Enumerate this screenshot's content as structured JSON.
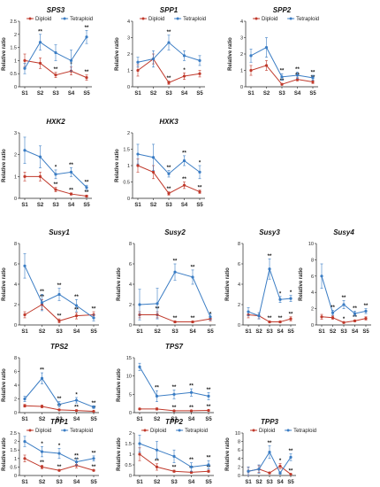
{
  "colors": {
    "diploid": "#c0392b",
    "tetraploid": "#3b7dc4"
  },
  "chart_data": [
    {
      "type": "line",
      "title": "SPS3",
      "ylabel": "Relative ratio",
      "categories": [
        "S1",
        "S2",
        "S3",
        "S4",
        "S5"
      ],
      "ylim": [
        0,
        2.5
      ],
      "yticks": [
        0,
        0.5,
        1,
        1.5,
        2,
        2.5
      ],
      "legend": {
        "position": "top",
        "entries": [
          "Diploid",
          "Tetraploid"
        ]
      },
      "series": [
        {
          "name": "Diploid",
          "values": [
            1.0,
            0.9,
            0.45,
            0.6,
            0.35
          ],
          "errors": [
            0.25,
            0.2,
            0.1,
            0.15,
            0.1
          ],
          "sig": [
            "",
            "",
            "**",
            "*",
            "**"
          ]
        },
        {
          "name": "Tetraploid",
          "values": [
            0.7,
            1.7,
            1.3,
            1.0,
            1.9
          ],
          "errors": [
            0.2,
            0.3,
            0.3,
            0.4,
            0.25
          ],
          "sig": [
            "",
            "**",
            "",
            "",
            "**"
          ]
        }
      ]
    },
    {
      "type": "line",
      "title": "SPP1",
      "ylabel": "Relative ratio",
      "categories": [
        "S1",
        "S2",
        "S3",
        "S4",
        "S5"
      ],
      "ylim": [
        0,
        4
      ],
      "yticks": [
        0,
        1,
        2,
        3,
        4
      ],
      "legend": {
        "position": "top",
        "entries": [
          "Diploid",
          "Tetraploid"
        ]
      },
      "series": [
        {
          "name": "Diploid",
          "values": [
            1.0,
            1.7,
            0.25,
            0.65,
            0.8
          ],
          "errors": [
            0.35,
            0.3,
            0.1,
            0.2,
            0.2
          ],
          "sig": [
            "",
            "",
            "**",
            "*",
            ""
          ]
        },
        {
          "name": "Tetraploid",
          "values": [
            1.5,
            1.7,
            2.7,
            1.9,
            1.6
          ],
          "errors": [
            0.3,
            0.5,
            0.45,
            0.3,
            0.3
          ],
          "sig": [
            "",
            "",
            "**",
            "",
            ""
          ]
        }
      ]
    },
    {
      "type": "line",
      "title": "SPP2",
      "ylabel": "Relative ratio",
      "categories": [
        "S1",
        "S2",
        "S3",
        "S4",
        "S5"
      ],
      "ylim": [
        0,
        4
      ],
      "yticks": [
        0,
        1,
        2,
        3,
        4
      ],
      "legend": {
        "position": "top",
        "entries": [
          "Diploid",
          "Tetraploid"
        ]
      },
      "series": [
        {
          "name": "Diploid",
          "values": [
            1.0,
            1.3,
            0.15,
            0.45,
            0.3
          ],
          "errors": [
            0.3,
            0.3,
            0.05,
            0.1,
            0.1
          ],
          "sig": [
            "",
            "",
            "**",
            "**",
            "**"
          ]
        },
        {
          "name": "Tetraploid",
          "values": [
            1.9,
            2.4,
            0.6,
            0.7,
            0.55
          ],
          "errors": [
            0.4,
            0.6,
            0.2,
            0.2,
            0.15
          ],
          "sig": [
            "",
            "",
            "**",
            "**",
            "**"
          ]
        }
      ]
    },
    {
      "type": "line",
      "title": "HXK2",
      "ylabel": "Relative ratio",
      "categories": [
        "S1",
        "S2",
        "S3",
        "S4",
        "S5"
      ],
      "ylim": [
        0,
        3
      ],
      "yticks": [
        0,
        1,
        2,
        3
      ],
      "series": [
        {
          "name": "Diploid",
          "values": [
            1.0,
            1.0,
            0.4,
            0.2,
            0.1
          ],
          "errors": [
            0.2,
            0.2,
            0.1,
            0.05,
            0.05
          ],
          "sig": [
            "",
            "",
            "**",
            "**",
            "**"
          ]
        },
        {
          "name": "Tetraploid",
          "values": [
            2.2,
            1.9,
            1.1,
            1.2,
            0.5
          ],
          "errors": [
            0.6,
            0.5,
            0.2,
            0.2,
            0.1
          ],
          "sig": [
            "",
            "",
            "*",
            "**",
            "**"
          ]
        }
      ]
    },
    {
      "type": "line",
      "title": "HXK3",
      "ylabel": "Relative ratio",
      "categories": [
        "S1",
        "S2",
        "S3",
        "S4",
        "S5"
      ],
      "ylim": [
        0,
        2
      ],
      "yticks": [
        0,
        0.5,
        1,
        1.5,
        2
      ],
      "series": [
        {
          "name": "Diploid",
          "values": [
            1.0,
            0.8,
            0.15,
            0.4,
            0.2
          ],
          "errors": [
            0.2,
            0.2,
            0.05,
            0.1,
            0.05
          ],
          "sig": [
            "",
            "",
            "**",
            "**",
            "**"
          ]
        },
        {
          "name": "Tetraploid",
          "values": [
            1.35,
            1.25,
            0.75,
            1.15,
            0.8
          ],
          "errors": [
            0.3,
            0.4,
            0.1,
            0.15,
            0.2
          ],
          "sig": [
            "",
            "",
            "**",
            "**",
            "*"
          ]
        }
      ]
    },
    {
      "type": "line",
      "title": "Susy1",
      "ylabel": "Relative ratio",
      "categories": [
        "S1",
        "S2",
        "S3",
        "S4",
        "S5"
      ],
      "ylim": [
        0,
        8
      ],
      "yticks": [
        0,
        2,
        4,
        6,
        8
      ],
      "series": [
        {
          "name": "Diploid",
          "values": [
            1.0,
            2.0,
            0.4,
            0.9,
            1.0
          ],
          "errors": [
            0.3,
            0.5,
            0.2,
            0.3,
            0.3
          ],
          "sig": [
            "",
            "**",
            "**",
            "**",
            "**"
          ]
        },
        {
          "name": "Tetraploid",
          "values": [
            5.8,
            2.2,
            3.0,
            1.9,
            0.7
          ],
          "errors": [
            1.2,
            0.8,
            0.6,
            0.6,
            0.3
          ],
          "sig": [
            "",
            "**",
            "**",
            "**",
            ""
          ]
        }
      ]
    },
    {
      "type": "line",
      "title": "Susy2",
      "ylabel": "Relative ratio",
      "categories": [
        "S1",
        "S2",
        "S3",
        "S4",
        "S5"
      ],
      "ylim": [
        0,
        8
      ],
      "yticks": [
        0,
        2,
        4,
        6,
        8
      ],
      "series": [
        {
          "name": "Diploid",
          "values": [
            1.0,
            1.0,
            0.3,
            0.3,
            0.6
          ],
          "errors": [
            0.3,
            0.3,
            0.1,
            0.1,
            0.2
          ],
          "sig": [
            "",
            "**",
            "**",
            "**",
            "*"
          ]
        },
        {
          "name": "Tetraploid",
          "values": [
            2.0,
            2.1,
            5.2,
            4.7,
            0.8
          ],
          "errors": [
            1.5,
            1.5,
            0.8,
            0.7,
            0.3
          ],
          "sig": [
            "",
            "",
            "**",
            "**",
            ""
          ]
        }
      ]
    },
    {
      "type": "line",
      "title": "Susy3",
      "ylabel": "Relative ratio",
      "categories": [
        "S1",
        "S2",
        "S3",
        "S4",
        "S5"
      ],
      "ylim": [
        0,
        8
      ],
      "yticks": [
        0,
        2,
        4,
        6,
        8
      ],
      "series": [
        {
          "name": "Diploid",
          "values": [
            1.0,
            0.9,
            0.3,
            0.3,
            0.6
          ],
          "errors": [
            0.3,
            0.3,
            0.1,
            0.1,
            0.2
          ],
          "sig": [
            "",
            "",
            "**",
            "**",
            "**"
          ]
        },
        {
          "name": "Tetraploid",
          "values": [
            1.3,
            0.9,
            5.5,
            2.5,
            2.6
          ],
          "errors": [
            0.4,
            0.3,
            1.0,
            0.3,
            0.3
          ],
          "sig": [
            "",
            "",
            "**",
            "*",
            "*"
          ]
        }
      ]
    },
    {
      "type": "line",
      "title": "Susy4",
      "ylabel": "Relative ratio",
      "categories": [
        "S1",
        "S2",
        "S3",
        "S4",
        "S5"
      ],
      "ylim": [
        0,
        10
      ],
      "yticks": [
        0,
        2,
        4,
        6,
        8,
        10
      ],
      "series": [
        {
          "name": "Diploid",
          "values": [
            1.0,
            0.9,
            0.3,
            0.5,
            0.8
          ],
          "errors": [
            0.3,
            0.2,
            0.1,
            0.1,
            0.2
          ],
          "sig": [
            "",
            "",
            "*",
            "**",
            ""
          ]
        },
        {
          "name": "Tetraploid",
          "values": [
            6.0,
            1.5,
            2.5,
            1.4,
            1.7
          ],
          "errors": [
            1.5,
            0.3,
            0.5,
            0.3,
            0.3
          ],
          "sig": [
            "",
            "**",
            "**",
            "**",
            "**"
          ]
        }
      ]
    },
    {
      "type": "line",
      "title": "TPS2",
      "ylabel": "Relative ratio",
      "categories": [
        "S1",
        "S2",
        "S3",
        "S4",
        "S5"
      ],
      "ylim": [
        0,
        8
      ],
      "yticks": [
        0,
        2,
        4,
        6,
        8
      ],
      "series": [
        {
          "name": "Diploid",
          "values": [
            1.0,
            0.9,
            0.4,
            0.3,
            0.2
          ],
          "errors": [
            0.2,
            0.2,
            0.1,
            0.1,
            0.05
          ],
          "sig": [
            "",
            "",
            "**",
            "**",
            "**"
          ]
        },
        {
          "name": "Tetraploid",
          "values": [
            2.0,
            5.0,
            1.2,
            1.8,
            0.8
          ],
          "errors": [
            0.4,
            0.8,
            0.4,
            0.4,
            0.2
          ],
          "sig": [
            "",
            "**",
            "**",
            "*",
            "**"
          ]
        }
      ]
    },
    {
      "type": "line",
      "title": "TPS7",
      "ylabel": "Relative ratio",
      "categories": [
        "S1",
        "S2",
        "S3",
        "S4",
        "S5"
      ],
      "ylim": [
        0,
        15
      ],
      "yticks": [
        0,
        5,
        10,
        15
      ],
      "series": [
        {
          "name": "Diploid",
          "values": [
            1.0,
            1.0,
            0.5,
            0.5,
            0.6
          ],
          "errors": [
            0.2,
            0.3,
            0.1,
            0.1,
            0.2
          ],
          "sig": [
            "",
            "",
            "**",
            "**",
            "**"
          ]
        },
        {
          "name": "Tetraploid",
          "values": [
            12.5,
            4.5,
            5.0,
            5.5,
            4.5
          ],
          "errors": [
            1.0,
            1.5,
            1.2,
            1.0,
            1.0
          ],
          "sig": [
            "",
            "**",
            "**",
            "**",
            "**"
          ]
        }
      ]
    },
    {
      "type": "line",
      "title": "TPP1",
      "ylabel": "Relative ratio",
      "categories": [
        "S1",
        "S2",
        "S3",
        "S4",
        "S5"
      ],
      "ylim": [
        0,
        2.5
      ],
      "yticks": [
        0,
        0.5,
        1,
        1.5,
        2,
        2.5
      ],
      "legend": {
        "position": "top",
        "entries": [
          "Diploid",
          "Tetraploid"
        ]
      },
      "series": [
        {
          "name": "Diploid",
          "values": [
            1.0,
            0.5,
            0.3,
            0.6,
            0.3
          ],
          "errors": [
            0.2,
            0.1,
            0.05,
            0.15,
            0.05
          ],
          "sig": [
            "",
            "**",
            "**",
            "**",
            "**"
          ]
        },
        {
          "name": "Tetraploid",
          "values": [
            2.0,
            1.4,
            1.3,
            0.8,
            1.0
          ],
          "errors": [
            0.3,
            0.3,
            0.3,
            0.2,
            0.15
          ],
          "sig": [
            "",
            "*",
            "*",
            "**",
            "**"
          ]
        }
      ]
    },
    {
      "type": "line",
      "title": "TPP2",
      "ylabel": "Relative ratio",
      "categories": [
        "S1",
        "S2",
        "S3",
        "S4",
        "S5"
      ],
      "ylim": [
        0,
        2
      ],
      "yticks": [
        0,
        0.5,
        1,
        1.5,
        2
      ],
      "legend": {
        "position": "top",
        "entries": [
          "Diploid",
          "Tetraploid"
        ]
      },
      "series": [
        {
          "name": "Diploid",
          "values": [
            1.0,
            0.4,
            0.2,
            0.15,
            0.2
          ],
          "errors": [
            0.3,
            0.15,
            0.05,
            0.05,
            0.05
          ],
          "sig": [
            "",
            "**",
            "**",
            "**",
            "**"
          ]
        },
        {
          "name": "Tetraploid",
          "values": [
            1.5,
            1.2,
            0.9,
            0.4,
            0.5
          ],
          "errors": [
            0.4,
            0.4,
            0.3,
            0.2,
            0.2
          ],
          "sig": [
            "",
            "",
            "",
            "**",
            "**"
          ]
        }
      ]
    },
    {
      "type": "line",
      "title": "TPP3",
      "ylabel": "Relative ratio",
      "categories": [
        "S1",
        "S2",
        "S3",
        "S4",
        "S5"
      ],
      "ylim": [
        0,
        10
      ],
      "yticks": [
        0,
        2,
        4,
        6,
        8,
        10
      ],
      "legend": {
        "position": "top",
        "entries": [
          "Diploid",
          "Tetraploid"
        ]
      },
      "series": [
        {
          "name": "Diploid",
          "values": [
            1.0,
            1.5,
            0.6,
            2.2,
            0.3
          ],
          "errors": [
            1.0,
            0.8,
            0.2,
            0.6,
            0.1
          ],
          "sig": [
            "",
            "",
            "",
            "*",
            "**"
          ]
        },
        {
          "name": "Tetraploid",
          "values": [
            1.0,
            1.5,
            5.5,
            0.6,
            4.3
          ],
          "errors": [
            1.0,
            1.0,
            1.5,
            0.3,
            0.8
          ],
          "sig": [
            "",
            "",
            "**",
            "",
            "**"
          ]
        }
      ]
    }
  ]
}
